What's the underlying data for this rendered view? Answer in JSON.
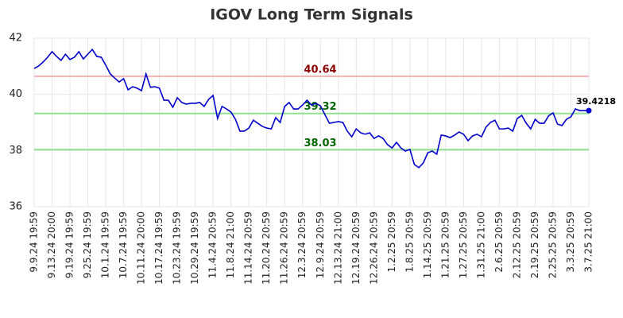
{
  "chart_data": {
    "type": "line",
    "title": "IGOV Long Term Signals",
    "categories": [
      "9.9.24 19:59",
      null,
      null,
      null,
      "9.13.24 20:00",
      null,
      null,
      null,
      "9.19.24 19:59",
      null,
      null,
      null,
      "9.25.24 19:59",
      null,
      null,
      null,
      "10.1.24 19:59",
      null,
      null,
      null,
      "10.7.24 19:59",
      null,
      null,
      null,
      "10.11.24 20:00",
      null,
      null,
      null,
      "10.17.24 19:59",
      null,
      null,
      null,
      "10.23.24 19:59",
      null,
      null,
      null,
      "10.29.24 19:59",
      null,
      null,
      null,
      "11.4.24 20:59",
      null,
      null,
      null,
      "11.8.24 21:00",
      null,
      null,
      null,
      "11.14.24 20:59",
      null,
      null,
      null,
      "11.20.24 20:59",
      null,
      null,
      null,
      "11.26.24 20:59",
      null,
      null,
      null,
      "12.3.24 20:59",
      null,
      null,
      null,
      "12.9.24 20:59",
      null,
      null,
      null,
      "12.13.24 21:00",
      null,
      null,
      null,
      "12.19.24 20:59",
      null,
      null,
      null,
      "12.26.24 20:59",
      null,
      null,
      null,
      "1.2.25 20:59",
      null,
      null,
      null,
      "1.8.25 20:59",
      null,
      null,
      null,
      "1.14.25 20:59",
      null,
      null,
      null,
      "1.21.25 20:59",
      null,
      null,
      null,
      "1.27.25 20:59",
      null,
      null,
      null,
      "1.31.25 21:00",
      null,
      null,
      null,
      "2.6.25 20:59",
      null,
      null,
      null,
      "2.12.25 20:59",
      null,
      null,
      null,
      "2.19.25 20:59",
      null,
      null,
      null,
      "2.25.25 20:59",
      null,
      null,
      null,
      "3.3.25 20:59",
      null,
      null,
      null,
      "3.7.25 21:00"
    ],
    "series": [
      {
        "color": "#0000cc",
        "values": [
          40.92,
          41.01,
          41.15,
          41.32,
          41.52,
          41.35,
          41.21,
          41.43,
          41.24,
          41.32,
          41.52,
          41.26,
          41.43,
          41.6,
          41.35,
          41.32,
          41.04,
          40.73,
          40.58,
          40.44,
          40.56,
          40.16,
          40.27,
          40.22,
          40.13,
          40.73,
          40.25,
          40.27,
          40.22,
          39.79,
          39.79,
          39.54,
          39.88,
          39.71,
          39.65,
          39.68,
          39.68,
          39.71,
          39.57,
          39.82,
          39.96,
          39.14,
          39.57,
          39.48,
          39.37,
          39.11,
          38.69,
          38.69,
          38.8,
          39.08,
          38.97,
          38.86,
          38.8,
          38.77,
          39.17,
          39.0,
          39.57,
          39.71,
          39.48,
          39.48,
          39.62,
          39.79,
          39.62,
          39.68,
          39.59,
          39.28,
          38.97,
          39.0,
          39.03,
          39.0,
          38.69,
          38.49,
          38.77,
          38.63,
          38.58,
          38.63,
          38.43,
          38.52,
          38.43,
          38.21,
          38.09,
          38.29,
          38.09,
          37.98,
          38.04,
          37.5,
          37.39,
          37.56,
          37.92,
          37.98,
          37.87,
          38.55,
          38.52,
          38.46,
          38.55,
          38.66,
          38.58,
          38.35,
          38.52,
          38.58,
          38.49,
          38.83,
          39.0,
          39.08,
          38.77,
          38.77,
          38.8,
          38.69,
          39.14,
          39.25,
          38.97,
          38.77,
          39.11,
          38.97,
          38.97,
          39.23,
          39.34,
          38.94,
          38.89,
          39.11,
          39.2,
          39.48,
          39.42,
          39.42,
          39.4218
        ]
      }
    ],
    "hlines": [
      {
        "value": 40.64,
        "color": "#f4b6b6",
        "label_color": "#8b0000"
      },
      {
        "value": 39.32,
        "color": "#90e090",
        "label_color": "#006400"
      },
      {
        "value": 38.03,
        "color": "#90e090",
        "label_color": "#006400"
      }
    ],
    "ylim": [
      36,
      42
    ],
    "yticks": [
      36,
      38,
      40,
      42
    ],
    "grid": true
  }
}
